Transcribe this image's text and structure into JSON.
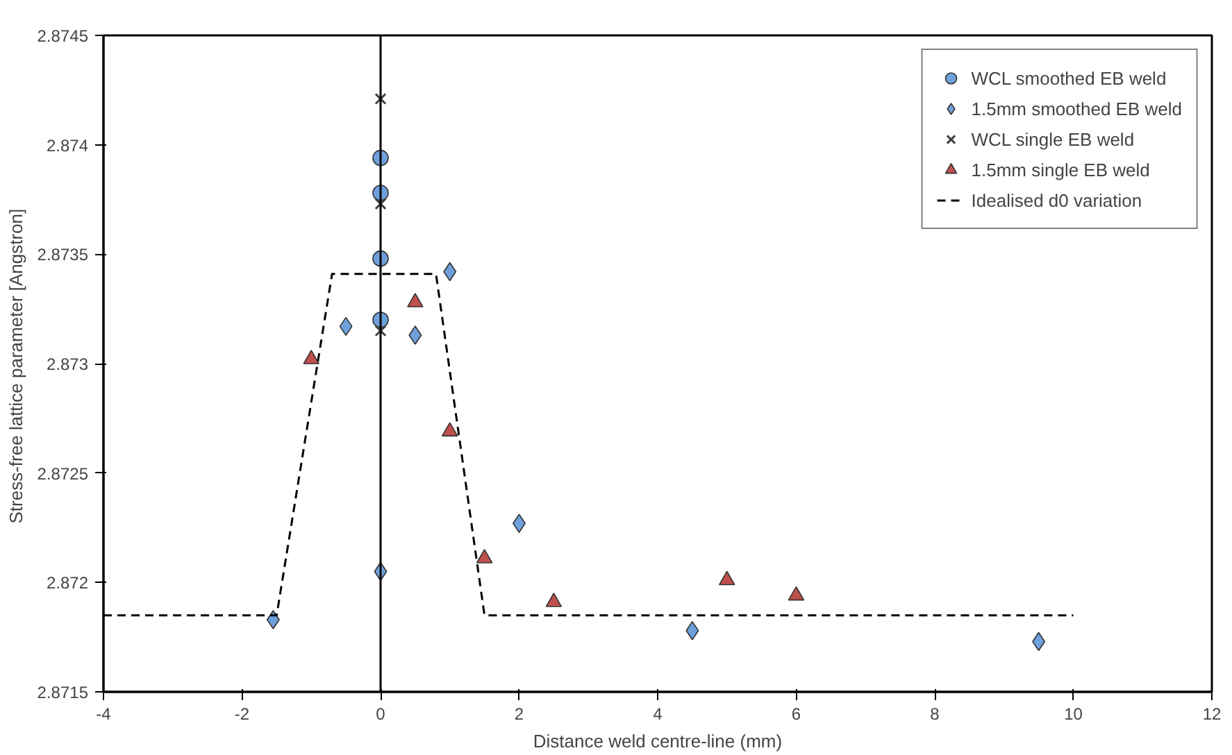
{
  "chart_data": {
    "type": "scatter",
    "xlabel": "Distance weld centre-line (mm)",
    "ylabel": "Stress-free lattice parameter  [Angstron]",
    "xlim": [
      -4,
      12
    ],
    "xticks": [
      -4,
      -2,
      0,
      2,
      4,
      6,
      8,
      10,
      12
    ],
    "ylim": [
      2.8715,
      2.8745
    ],
    "yticks": [
      2.8715,
      2.872,
      2.8725,
      2.873,
      2.8735,
      2.874,
      2.8745
    ],
    "grid": false,
    "legend": "top right",
    "ref_lines": [
      {
        "axis": "x",
        "value": 0,
        "color": "#000000",
        "line_style": "solid"
      }
    ],
    "series": [
      {
        "name": "WCL smoothed EB weld",
        "color": "#6fa0dc",
        "marker": "circle",
        "x": [
          0,
          0,
          0,
          0
        ],
        "values": [
          2.87394,
          2.87378,
          2.87348,
          2.8732
        ]
      },
      {
        "name": "1.5mm smoothed EB weld",
        "color": "#6fa0dc",
        "marker": "diamond",
        "x": [
          -1.55,
          -0.5,
          0,
          0.5,
          1,
          2,
          4.5,
          9.5
        ],
        "values": [
          2.87183,
          2.87317,
          2.87205,
          2.87313,
          2.87342,
          2.87227,
          2.87178,
          2.87173
        ]
      },
      {
        "name": "WCL single EB weld",
        "color": "#404040",
        "marker": "cross",
        "x": [
          0,
          0,
          0
        ],
        "values": [
          2.87421,
          2.87373,
          2.87315
        ]
      },
      {
        "name": "1.5mm single EB weld",
        "color": "#c0504d",
        "marker": "triangle",
        "x": [
          -1,
          0.5,
          1,
          1.5,
          2.5,
          5,
          6
        ],
        "values": [
          2.87302,
          2.87328,
          2.87269,
          2.87211,
          2.87191,
          2.87201,
          2.87194
        ]
      },
      {
        "name": "Idealised d0 variation",
        "type": "line",
        "color": "#000000",
        "line_style": "dashed",
        "marker": "none",
        "x": [
          -4,
          -1.5,
          -0.7,
          0.8,
          1.5,
          10
        ],
        "values": [
          2.87185,
          2.87185,
          2.87341,
          2.87341,
          2.87185,
          2.87185
        ]
      }
    ]
  }
}
